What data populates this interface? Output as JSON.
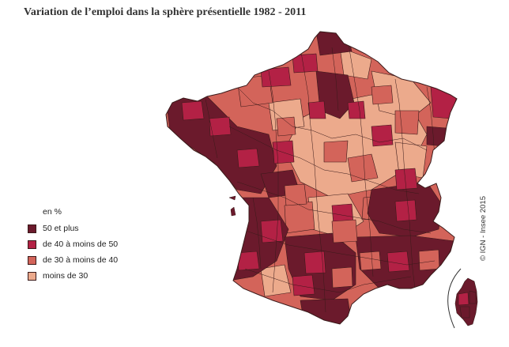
{
  "title": "Variation de l’emploi dans la sphère présentielle 1982 - 2011",
  "legend": {
    "unit": "en %",
    "classes": [
      {
        "label": "50 et plus",
        "color": "#6b1a2c"
      },
      {
        "label": "de 40 à moins de 50",
        "color": "#b32145"
      },
      {
        "label": "de 30 à moins de 40",
        "color": "#d3645a"
      },
      {
        "label": "moins de 30",
        "color": "#ecaa8c"
      }
    ]
  },
  "credit": "© IGN - Insee 2015",
  "colors": {
    "border": "#3a1a1a",
    "background": "#ffffff"
  }
}
